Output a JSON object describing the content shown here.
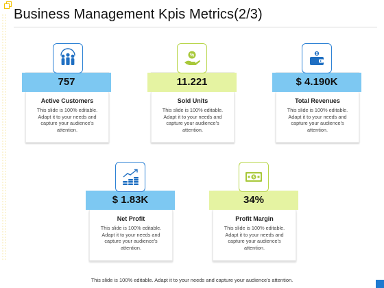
{
  "title": "Business Management Kpis Metrics(2/3)",
  "kpis": [
    {
      "value": "757",
      "label": "Active Customers",
      "icon": "people-group-icon"
    },
    {
      "value": "11.221",
      "label": "Sold Units",
      "icon": "percent-hand-icon"
    },
    {
      "value": "$ 4.190K",
      "label": "Total Revenues",
      "icon": "wallet-icon"
    },
    {
      "value": "$ 1.83K",
      "label": "Net Profit",
      "icon": "growth-coins-icon"
    },
    {
      "value": "34%",
      "label": "Profit Margin",
      "icon": "banknote-icon"
    }
  ],
  "card_description": "This slide is 100% editable. Adapt it to your needs and capture your audience's attention.",
  "footer": "This slide is 100% editable. Adapt it to your needs and capture your audience's attention.",
  "colors": {
    "blue_band": "#7dc8f2",
    "green_band": "#e5f3a2",
    "blue_icon": "#2d82d5",
    "green_icon": "#b8d64a"
  }
}
